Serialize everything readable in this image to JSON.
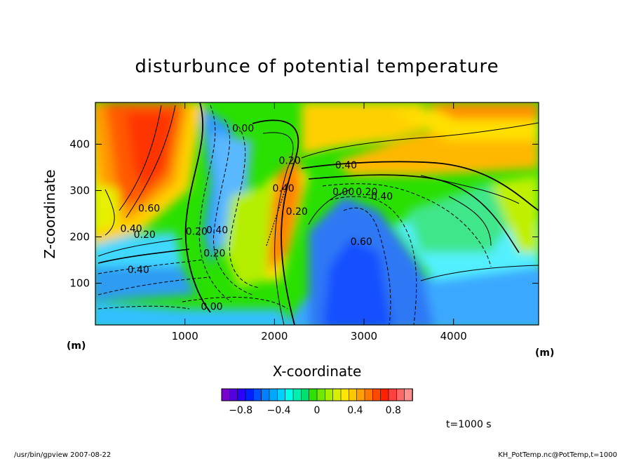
{
  "chart_data": {
    "type": "heatmap",
    "title": "disturbunce of potential temperature",
    "xlabel": "X-coordinate",
    "ylabel": "Z-coordinate",
    "x_unit": "(m)",
    "y_unit": "(m)",
    "xlim": [
      0,
      4950
    ],
    "ylim": [
      10,
      490
    ],
    "x_ticks": [
      1000,
      2000,
      3000,
      4000
    ],
    "y_ticks": [
      100,
      200,
      300,
      400
    ],
    "colorbar": {
      "min": -1.0,
      "max": 1.0,
      "ticks": [
        -0.8,
        -0.4,
        0,
        0.4,
        0.8
      ],
      "tick_labels": [
        "−0.8",
        "−0.4",
        "0",
        "0.4",
        "0.8"
      ]
    },
    "contour_labels": [
      {
        "text": "0.00",
        "x": 1650,
        "z": 435
      },
      {
        "text": "0.20",
        "x": 2170,
        "z": 365
      },
      {
        "text": "0.40",
        "x": 2100,
        "z": 305
      },
      {
        "text": "0.40",
        "x": 2800,
        "z": 355
      },
      {
        "text": "0.20",
        "x": 2250,
        "z": 255
      },
      {
        "text": "0.00",
        "x": 2770,
        "z": 298
      },
      {
        "text": "0.20",
        "x": 3030,
        "z": 298
      },
      {
        "text": "0.40",
        "x": 3200,
        "z": 288
      },
      {
        "text": "0.60",
        "x": 600,
        "z": 262
      },
      {
        "text": "0.40",
        "x": 400,
        "z": 218
      },
      {
        "text": "0.20",
        "x": 550,
        "z": 205
      },
      {
        "text": "0.20",
        "x": 1130,
        "z": 212
      },
      {
        "text": "0.40",
        "x": 1360,
        "z": 215
      },
      {
        "text": "0.20",
        "x": 1330,
        "z": 165
      },
      {
        "text": "0.60",
        "x": 2970,
        "z": 190
      },
      {
        "text": "0.40",
        "x": 480,
        "z": 130
      },
      {
        "text": "0.00",
        "x": 1300,
        "z": 50
      }
    ],
    "footer_left": "/usr/bin/gpview   2007-08-22",
    "footer_right": "KH_PotTemp.nc@PotTemp,t=1000",
    "time_label": "t=1000  s"
  }
}
